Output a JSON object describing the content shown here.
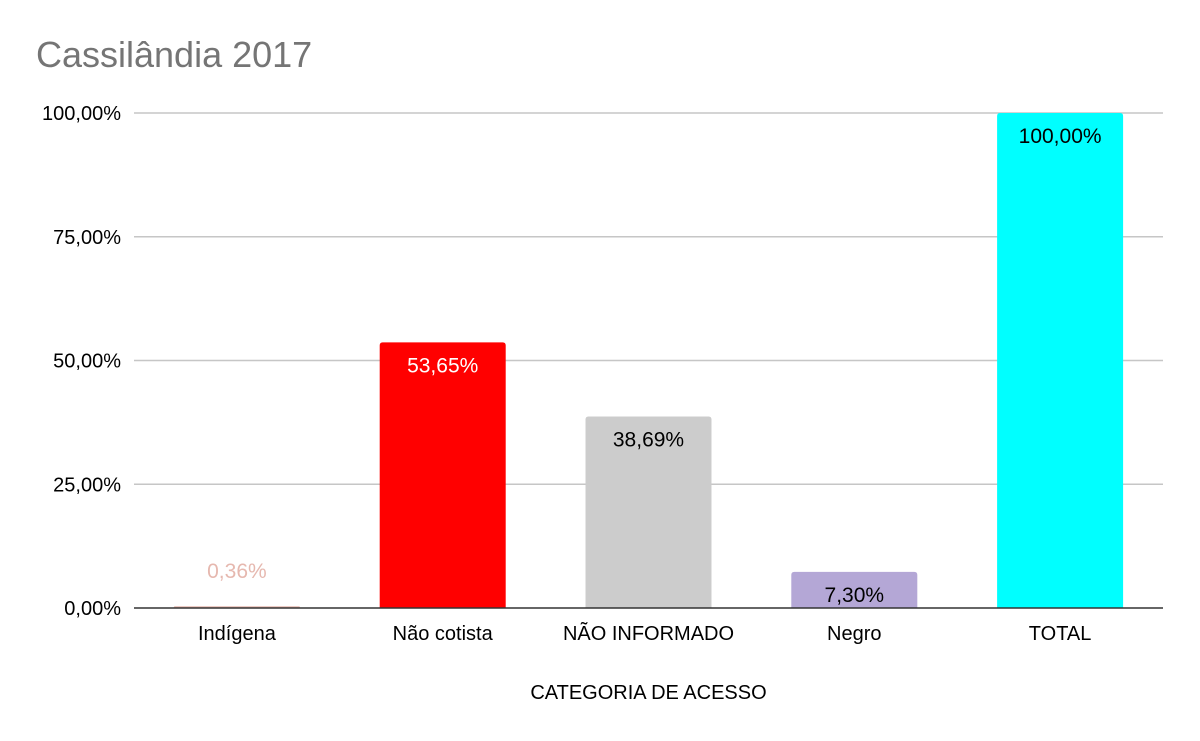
{
  "chart_data": {
    "type": "bar",
    "title": "Cassilândia 2017",
    "xlabel": "CATEGORIA DE ACESSO",
    "ylabel": "",
    "ylim": [
      0,
      100
    ],
    "yticks": [
      0,
      25,
      50,
      75,
      100
    ],
    "ytick_labels": [
      "0,00%",
      "25,00%",
      "50,00%",
      "75,00%",
      "100,00%"
    ],
    "grid": true,
    "categories": [
      "Indígena",
      "Não cotista",
      "NÃO INFORMADO",
      "Negro",
      "TOTAL"
    ],
    "values": [
      0.36,
      53.65,
      38.69,
      7.3,
      100.0
    ],
    "value_labels": [
      "0,36%",
      "53,65%",
      "38,69%",
      "7,30%",
      "100,00%"
    ],
    "colors": [
      "#e6b8af",
      "#ff0000",
      "#cccccc",
      "#b4a7d6",
      "#00ffff"
    ],
    "label_colors": [
      "#e6b8af",
      "#ffffff",
      "#000000",
      "#000000",
      "#000000"
    ]
  }
}
